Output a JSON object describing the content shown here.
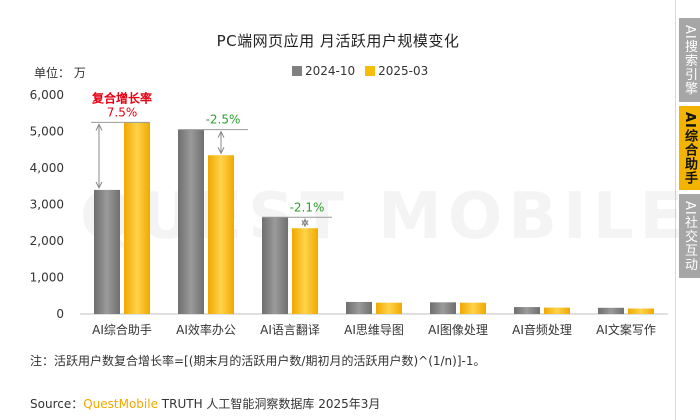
{
  "title": "PC端网页应用 月活跃用户规模变化",
  "unit_label": "单位： 万",
  "watermark": "QUEST MOBILE",
  "colors": {
    "series_2024": "#808080",
    "series_2025": "#f5bd0d",
    "growth_red": "#e60012",
    "growth_green": "#2e9e2e"
  },
  "side_tabs": [
    "AI搜索引擎",
    "AI综合助手",
    "AI社交互动"
  ],
  "active_tab": "AI综合助手",
  "chart_data": {
    "type": "bar",
    "categories": [
      "AI综合助手",
      "AI效率办公",
      "AI语言翻译",
      "AI思维导图",
      "AI图像处理",
      "AI音频处理",
      "AI文案写作"
    ],
    "series": [
      {
        "name": "2024-10",
        "values": [
          3400,
          5050,
          2650,
          330,
          320,
          190,
          170
        ]
      },
      {
        "name": "2025-03",
        "values": [
          5250,
          4350,
          2350,
          310,
          310,
          175,
          150
        ]
      }
    ],
    "ylim": [
      0,
      6000
    ],
    "yticks": [
      "0",
      "1,000",
      "2,000",
      "3,000",
      "4,000",
      "5,000",
      "6,000"
    ],
    "legend_position": "top-center",
    "grid": false,
    "annotations": [
      {
        "category_index": 0,
        "heading": "复合增长率",
        "text": "7.5%",
        "color": "red"
      },
      {
        "category_index": 1,
        "text": "-2.5%",
        "color": "green"
      },
      {
        "category_index": 2,
        "text": "-2.1%",
        "color": "green"
      }
    ]
  },
  "note": "注：活跃用户数复合增长率=[(期末月的活跃用户数/期初月的活跃用户数)^(1/n)]-1。",
  "source": {
    "prefix": "Source：",
    "brand": "QuestMobile",
    "suffix": " TRUTH 人工智能洞察数据库 2025年3月"
  }
}
